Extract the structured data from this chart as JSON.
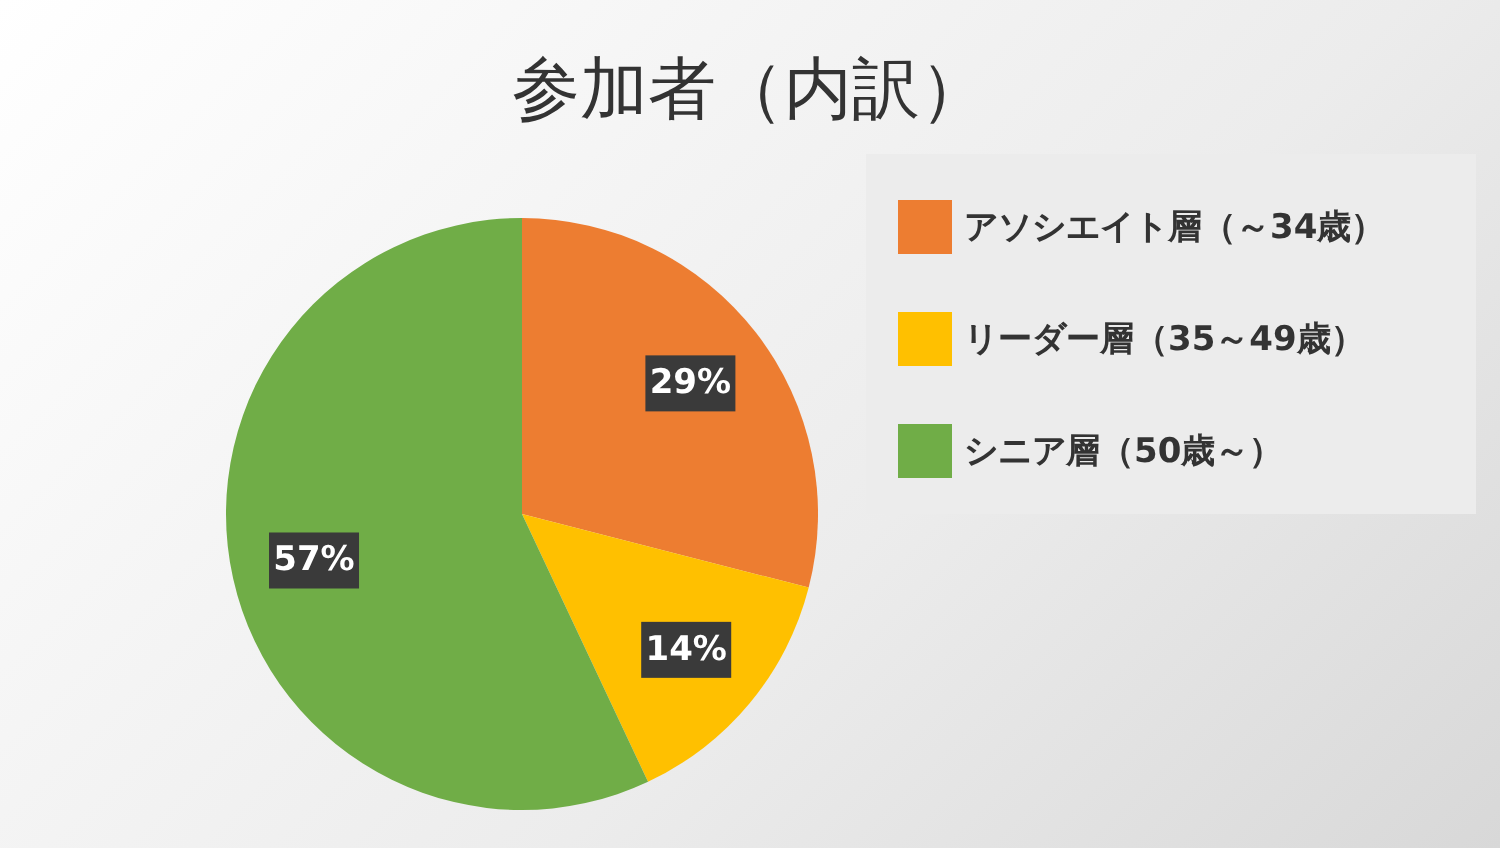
{
  "chart_data": {
    "type": "pie",
    "title": "参加者（内訳）",
    "categories": [
      "アソシエイト層（～34歳）",
      "リーダー層（35～49歳）",
      "シニア層（50歳～）"
    ],
    "values": [
      29,
      14,
      57
    ],
    "colors": [
      "#ed7d31",
      "#ffc000",
      "#70ad47"
    ],
    "value_labels": [
      "29%",
      "14%",
      "57%"
    ],
    "legend": "right"
  }
}
